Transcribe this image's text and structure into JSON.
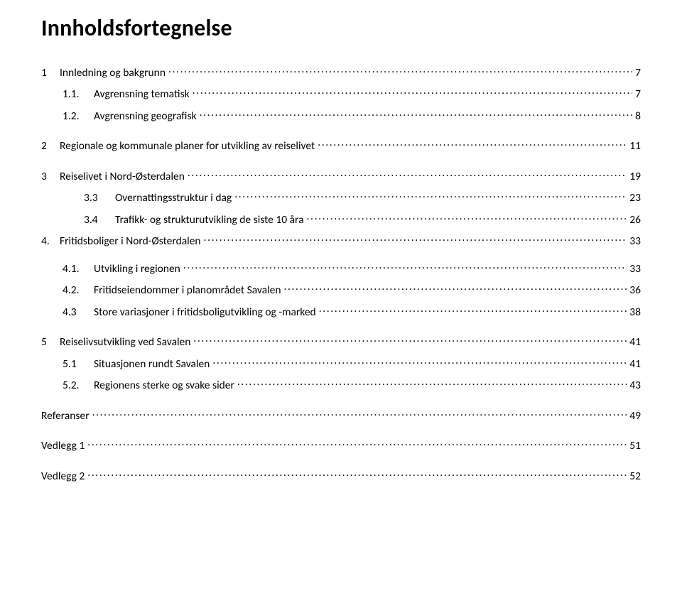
{
  "title": "Innholdsfortegnelse",
  "entries": [
    {
      "num": "1",
      "text": "Innledning og bakgrunn",
      "page": "7",
      "level": 0,
      "gap": "lg",
      "numw": "sm"
    },
    {
      "num": "1.1.",
      "text": "Avgrensning tematisk",
      "page": "7",
      "level": 1,
      "gap": "",
      "numw": "md"
    },
    {
      "num": "1.2.",
      "text": "Avgrensning geografisk",
      "page": "8",
      "level": 1,
      "gap": "",
      "numw": "md"
    },
    {
      "num": "2",
      "text": "Regionale og kommunale planer for utvikling av reiselivet",
      "page": "11",
      "level": 0,
      "gap": "lg",
      "numw": "sm"
    },
    {
      "num": "3",
      "text": "Reiselivet i Nord-Østerdalen",
      "page": "19",
      "level": 0,
      "gap": "lg",
      "numw": "sm"
    },
    {
      "num": "3.3",
      "text": "Overnattingsstruktur i dag",
      "page": "23",
      "level": 2,
      "gap": "",
      "numw": "md"
    },
    {
      "num": "3.4",
      "text": "Trafikk- og strukturutvikling de siste 10 åra",
      "page": "26",
      "level": 2,
      "gap": "",
      "numw": "md"
    },
    {
      "num": "4.",
      "text": "Fritidsboliger i Nord-Østerdalen",
      "page": "33",
      "level": 0,
      "gap": "",
      "numw": "sm"
    },
    {
      "num": "4.1.",
      "text": "Utvikling i regionen",
      "page": "33",
      "level": 1,
      "gap": "md",
      "numw": "md"
    },
    {
      "num": "4.2.",
      "text": "Fritidseiendommer i planområdet Savalen",
      "page": "36",
      "level": 1,
      "gap": "",
      "numw": "md"
    },
    {
      "num": "4.3",
      "text": "Store variasjoner i fritidsboligutvikling og -marked",
      "page": "38",
      "level": 1,
      "gap": "",
      "numw": "md"
    },
    {
      "num": "5",
      "text": "Reiselivsutvikling ved Savalen",
      "page": "41",
      "level": 0,
      "gap": "lg",
      "numw": "sm"
    },
    {
      "num": "5.1",
      "text": "Situasjonen rundt Savalen",
      "page": "41",
      "level": 1,
      "gap": "",
      "numw": "md"
    },
    {
      "num": "5.2.",
      "text": "Regionens sterke og svake sider",
      "page": "43",
      "level": 1,
      "gap": "",
      "numw": "md"
    },
    {
      "num": "",
      "text": "Referanser",
      "page": "49",
      "level": 0,
      "gap": "lg",
      "numw": "none"
    },
    {
      "num": "",
      "text": "Vedlegg 1",
      "page": "51",
      "level": 0,
      "gap": "lg",
      "numw": "none"
    },
    {
      "num": "",
      "text": "Vedlegg 2",
      "page": "52",
      "level": 0,
      "gap": "lg",
      "numw": "none"
    }
  ]
}
